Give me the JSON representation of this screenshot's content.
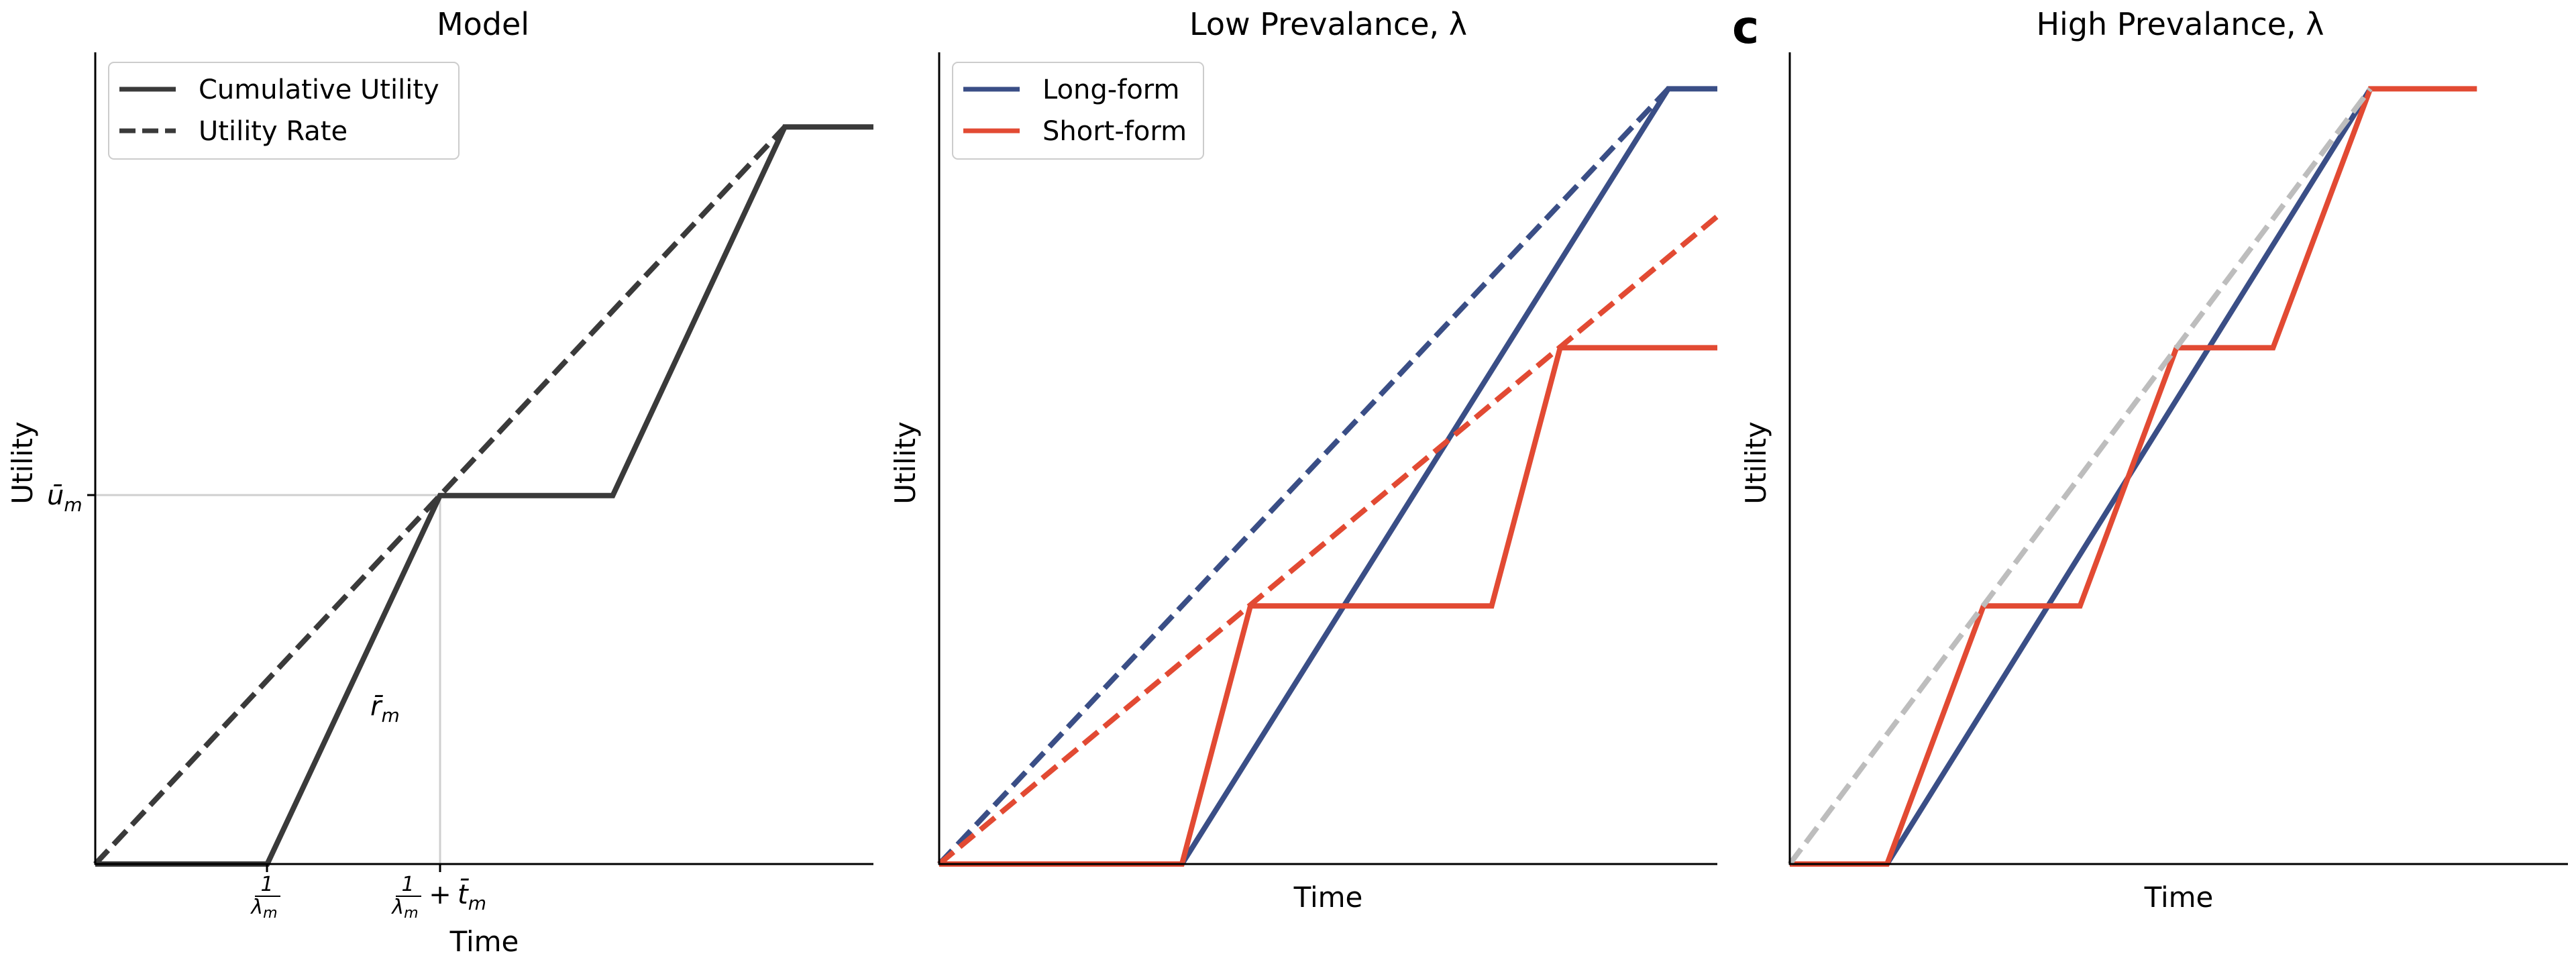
{
  "colors": {
    "model": "#3a3a3a",
    "long_form": "#3a4e86",
    "short_form": "#e24a33",
    "reference": "#bdbdbd",
    "axis": "#000000",
    "guide": "#cfcfcf"
  },
  "panels": {
    "a": {
      "title": "Model",
      "xlabel": "Time",
      "ylabel": "Utility"
    },
    "b": {
      "title": "Low Prevalance, λ",
      "xlabel": "Time",
      "ylabel": "Utility"
    },
    "c": {
      "letter": "c",
      "title": "High Prevalance, λ",
      "xlabel": "Time",
      "ylabel": "Utility"
    }
  },
  "legends": {
    "a": [
      "Cumulative Utility",
      "Utility Rate"
    ],
    "b": [
      "Long-form",
      "Short-form"
    ]
  },
  "annotations": {
    "u_bar": "ū",
    "u_sub": "m",
    "r_bar": "r̄",
    "r_sub": "m",
    "tick1_num": "1",
    "tick1_den": "λ",
    "tick1_sub": "m",
    "tick2_plus": "+",
    "tick2_t": "t̄",
    "tick2_sub": "m"
  },
  "chart_data": [
    {
      "type": "line",
      "title": "Model",
      "xlabel": "Time",
      "ylabel": "Utility",
      "xlim": [
        0,
        10
      ],
      "ylim": [
        0,
        10
      ],
      "xticks": [
        "1/λm",
        "1/λm + t̄m"
      ],
      "yticks": [
        "ūm"
      ],
      "legend": "top-left",
      "series": [
        {
          "name": "Cumulative Utility",
          "style": "solid",
          "color": "#3a3a3a",
          "x": [
            0,
            2.21,
            4.43,
            6.65,
            8.86,
            10
          ],
          "y": [
            0,
            0,
            4.54,
            4.54,
            9.08,
            9.08
          ]
        },
        {
          "name": "Utility Rate",
          "style": "dashed",
          "color": "#3a3a3a",
          "x": [
            0,
            8.86
          ],
          "y": [
            0,
            9.08
          ]
        }
      ],
      "annotations": [
        {
          "text": "r̄m",
          "x": 3.7,
          "y": 1.9
        },
        {
          "text": "ūm",
          "guide": "horizontal",
          "y": 4.54
        },
        {
          "guide": "vertical",
          "x": 4.43
        }
      ]
    },
    {
      "type": "line",
      "title": "Low Prevalance, λ",
      "xlabel": "Time",
      "ylabel": "Utility",
      "xlim": [
        0,
        10
      ],
      "ylim": [
        0,
        10
      ],
      "legend": "top-left",
      "series": [
        {
          "name": "Long-form",
          "style": "solid",
          "color": "#3a4e86",
          "x": [
            0,
            3.12,
            9.37,
            10
          ],
          "y": [
            0,
            0,
            9.55,
            9.55
          ]
        },
        {
          "style": "dashed",
          "color": "#3a4e86",
          "x": [
            0,
            9.37
          ],
          "y": [
            0,
            9.55
          ]
        },
        {
          "name": "Short-form",
          "style": "solid",
          "color": "#e24a33",
          "x": [
            0,
            3.12,
            4.0,
            7.1,
            7.98,
            10
          ],
          "y": [
            0,
            0,
            3.18,
            3.18,
            6.36,
            6.36
          ]
        },
        {
          "style": "dashed",
          "color": "#e24a33",
          "x": [
            0,
            10
          ],
          "y": [
            0,
            7.98
          ]
        }
      ]
    },
    {
      "type": "line",
      "title": "High Prevalance, λ",
      "xlabel": "Time",
      "ylabel": "Utility",
      "xlim": [
        0,
        10
      ],
      "ylim": [
        0,
        10
      ],
      "series": [
        {
          "style": "solid",
          "color": "#3a4e86",
          "x": [
            0,
            1.25,
            7.46
          ],
          "y": [
            0,
            0,
            9.55
          ]
        },
        {
          "style": "solid",
          "color": "#e24a33",
          "x": [
            0,
            1.25,
            2.49,
            3.73,
            4.97,
            6.21,
            7.46,
            8.83
          ],
          "y": [
            0,
            0,
            3.18,
            3.18,
            6.36,
            6.36,
            9.55,
            9.55
          ]
        },
        {
          "style": "dashed",
          "color": "#bdbdbd",
          "x": [
            0,
            7.46
          ],
          "y": [
            0,
            9.55
          ]
        }
      ]
    }
  ]
}
